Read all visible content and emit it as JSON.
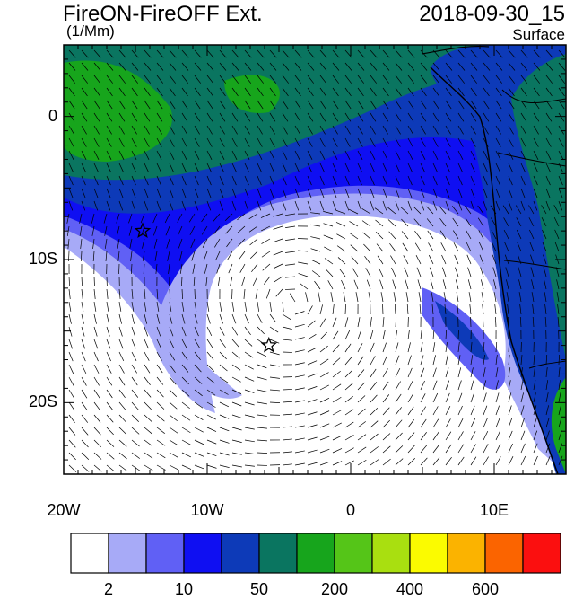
{
  "title": "FireON-FireOFF Ext.",
  "units": "(1/Mm)",
  "datetime": "2018-09-30_15",
  "level": "Surface",
  "map": {
    "lon_range": [
      -20,
      15
    ],
    "lat_range": [
      -25,
      5
    ],
    "lon_ticks": [
      {
        "value": -20,
        "label": "20W"
      },
      {
        "value": -10,
        "label": "10W"
      },
      {
        "value": 0,
        "label": "0"
      },
      {
        "value": 10,
        "label": "10E"
      }
    ],
    "lat_ticks": [
      {
        "value": 0,
        "label": "0"
      },
      {
        "value": -10,
        "label": "10S"
      },
      {
        "value": -20,
        "label": "20S"
      }
    ],
    "markers": [
      {
        "name": "star",
        "lon": -14.5,
        "lat": -8.0
      },
      {
        "name": "star",
        "lon": -5.7,
        "lat": -16.0
      }
    ]
  },
  "colorbar": {
    "colors": [
      "#ffffff",
      "#a7aaf7",
      "#6060f5",
      "#0f0ff2",
      "#0d3ab8",
      "#0a7560",
      "#17a51c",
      "#55c518",
      "#a9df10",
      "#fbfb00",
      "#fbb300",
      "#fb6400",
      "#fb0f0f"
    ],
    "labels": [
      {
        "text": "2",
        "after_box": 1
      },
      {
        "text": "10",
        "after_box": 3
      },
      {
        "text": "50",
        "after_box": 5
      },
      {
        "text": "200",
        "after_box": 7
      },
      {
        "text": "400",
        "after_box": 9
      },
      {
        "text": "600",
        "after_box": 11
      }
    ]
  }
}
